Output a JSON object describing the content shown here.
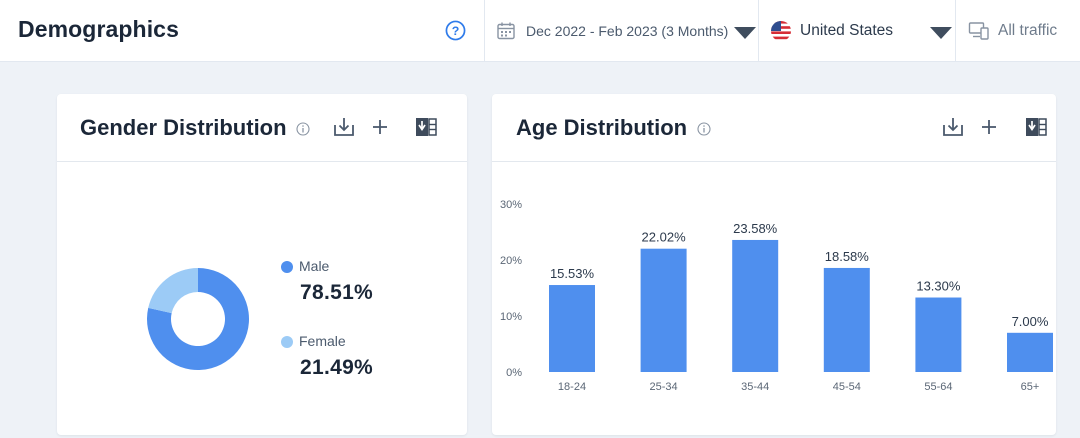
{
  "header": {
    "title": "Demographics",
    "date_range": "Dec 2022 - Feb 2023 (3 Months)",
    "country": "United States",
    "traffic": "All traffic"
  },
  "gender_card": {
    "title": "Gender Distribution",
    "legend": [
      {
        "label": "Male",
        "value": "78.51%",
        "color": "#4f8fee"
      },
      {
        "label": "Female",
        "value": "21.49%",
        "color": "#9ccbf6"
      }
    ]
  },
  "age_card": {
    "title": "Age Distribution"
  },
  "chart_data": {
    "type": "bar",
    "categories": [
      "18-24",
      "25-34",
      "35-44",
      "45-54",
      "55-64",
      "65+"
    ],
    "values": [
      15.53,
      22.02,
      23.58,
      18.58,
      13.3,
      7.0
    ],
    "data_labels": [
      "15.53%",
      "22.02%",
      "23.58%",
      "18.58%",
      "13.30%",
      "7.00%"
    ],
    "y_ticks": [
      "0%",
      "10%",
      "20%",
      "30%"
    ],
    "ylim": [
      0,
      30
    ],
    "grid": false,
    "bar_color": "#4f8fee",
    "title": "",
    "xlabel": "",
    "ylabel": ""
  },
  "gender_chart": {
    "type": "pie",
    "labels": [
      "Male",
      "Female"
    ],
    "values": [
      78.51,
      21.49
    ],
    "colors": [
      "#4f8fee",
      "#9ccbf6"
    ]
  }
}
